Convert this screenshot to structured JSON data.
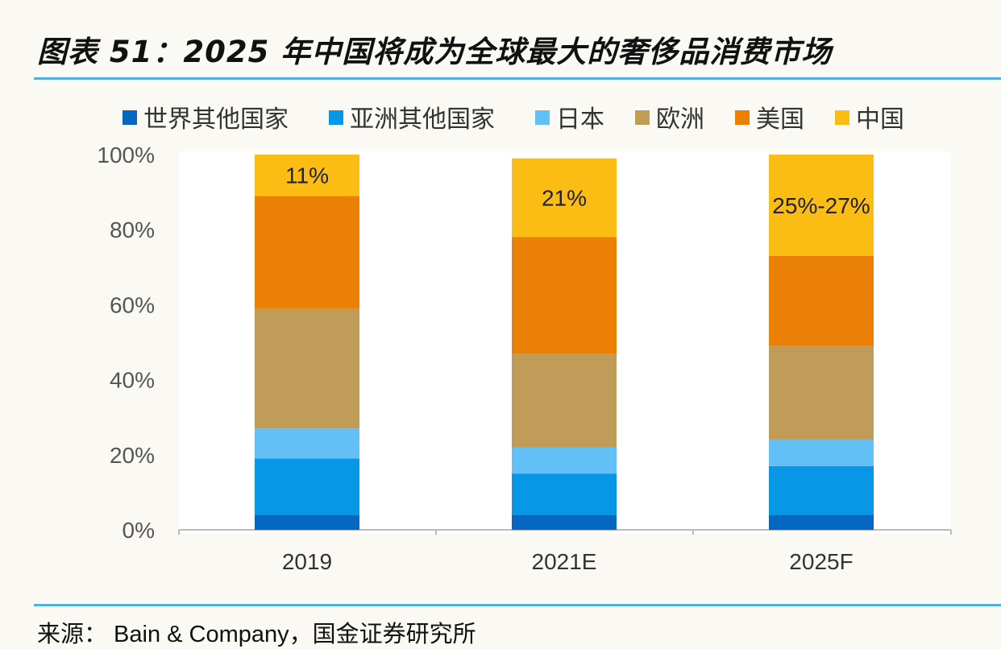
{
  "title": "图表 51：2025 年中国将成为全球最大的奢侈品消费市场",
  "source": "来源： Bain & Company，国金证券研究所",
  "chart_data": {
    "type": "bar",
    "stacked": true,
    "categories": [
      "2019",
      "2021E",
      "2025F"
    ],
    "series": [
      {
        "name": "世界其他国家",
        "color": "#0567c0",
        "values": [
          4,
          4,
          4
        ]
      },
      {
        "name": "亚洲其他国家",
        "color": "#0797e6",
        "values": [
          15,
          11,
          13
        ]
      },
      {
        "name": "日本",
        "color": "#62c0f7",
        "values": [
          8,
          7,
          7
        ]
      },
      {
        "name": "欧洲",
        "color": "#c19b58",
        "values": [
          32,
          25,
          25
        ]
      },
      {
        "name": "美国",
        "color": "#ea8106",
        "values": [
          30,
          31,
          24
        ]
      },
      {
        "name": "中国",
        "color": "#fbbd14",
        "values": [
          11,
          21,
          27
        ]
      }
    ],
    "data_labels": [
      "11%",
      "21%",
      "25%-27%"
    ],
    "y_ticks": [
      "0%",
      "20%",
      "40%",
      "60%",
      "80%",
      "100%"
    ],
    "ylim": [
      0,
      100
    ],
    "grid": false,
    "legend": "top"
  }
}
